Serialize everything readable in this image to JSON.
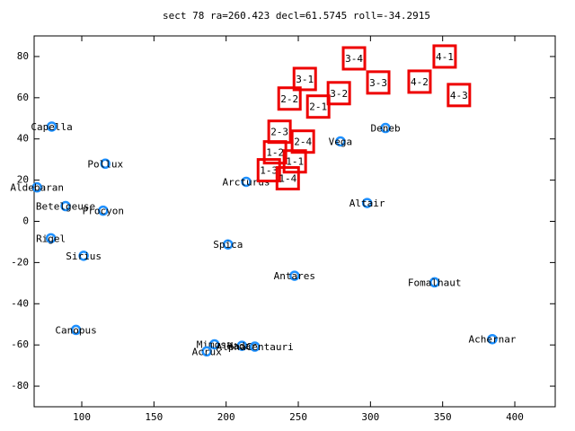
{
  "chart_data": {
    "type": "scatter",
    "title": "sect 78 ra=260.423 decl=61.5745 roll=-34.2915",
    "xlim": [
      67,
      428
    ],
    "ylim": [
      -90,
      90
    ],
    "xticks": [
      100,
      150,
      200,
      250,
      300,
      350,
      400
    ],
    "yticks": [
      -80,
      -60,
      -40,
      -20,
      0,
      20,
      40,
      60,
      80
    ],
    "points": {
      "color": "#1e90ff",
      "labels": [
        "Capella",
        "Pollux",
        "Aldebaran",
        "Betelgeuse",
        "Procyon",
        "Rigel",
        "Sirius",
        "Canopus",
        "Mimosa",
        "Acrux",
        "Hadar",
        "AlphaCentauri",
        "Spica",
        "Arcturus",
        "Antares",
        "Vega",
        "Altair",
        "Deneb",
        "Fomalhaut",
        "Achernar"
      ],
      "x": [
        79.2,
        116.3,
        69.0,
        88.8,
        114.8,
        78.6,
        101.3,
        96.0,
        191.9,
        186.6,
        211.0,
        219.9,
        201.3,
        213.9,
        247.4,
        279.2,
        297.7,
        310.4,
        344.4,
        384.4
      ],
      "y": [
        46.0,
        28.0,
        16.5,
        7.4,
        5.2,
        -8.2,
        -16.7,
        -52.7,
        -59.7,
        -63.1,
        -60.4,
        -60.8,
        -11.2,
        19.2,
        -26.4,
        38.8,
        8.9,
        45.3,
        -29.6,
        -57.2
      ]
    },
    "boxes": {
      "color": "#ee0000",
      "labels": [
        "3-1",
        "3-4",
        "4-1",
        "3-3",
        "4-2",
        "4-3",
        "2-2",
        "3-2",
        "2-1",
        "2-3",
        "2-4",
        "1-2",
        "1-1",
        "1-3",
        "1-4"
      ],
      "x": [
        254.5,
        288.6,
        351.4,
        305.4,
        334.0,
        361.3,
        243.9,
        278.1,
        263.8,
        237.0,
        253.2,
        233.9,
        247.6,
        229.6,
        242.7
      ],
      "y": [
        69.1,
        79.1,
        80.0,
        67.4,
        67.8,
        61.3,
        59.6,
        62.2,
        55.7,
        43.5,
        38.7,
        33.5,
        29.1,
        24.8,
        20.9
      ]
    }
  }
}
